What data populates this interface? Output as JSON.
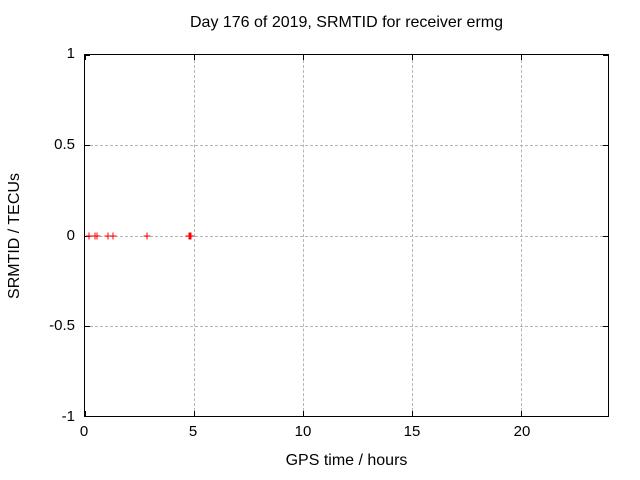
{
  "chart_data": {
    "type": "scatter",
    "title": "Day 176 of 2019, SRMTID for receiver ermg",
    "xlabel": "GPS time / hours",
    "ylabel": "SRMTID / TECUs",
    "xlim": [
      0,
      24
    ],
    "ylim": [
      -1,
      1
    ],
    "xticks": [
      0,
      5,
      10,
      15,
      20
    ],
    "yticks": [
      -1,
      -0.5,
      0,
      0.5,
      1
    ],
    "grid": true,
    "legend": "none",
    "background_color": "#ffffff",
    "grid_color": "#b5b5b5",
    "axis_color": "#000000",
    "series": [
      {
        "name": "SRMTID",
        "marker": "plus",
        "color": "#ff0000",
        "points": [
          [
            0.2,
            0
          ],
          [
            0.45,
            0
          ],
          [
            0.55,
            0
          ],
          [
            1.05,
            0
          ],
          [
            1.3,
            0
          ],
          [
            2.85,
            0
          ],
          [
            4.75,
            0
          ],
          [
            4.8,
            0
          ],
          [
            4.85,
            0
          ]
        ]
      }
    ]
  }
}
